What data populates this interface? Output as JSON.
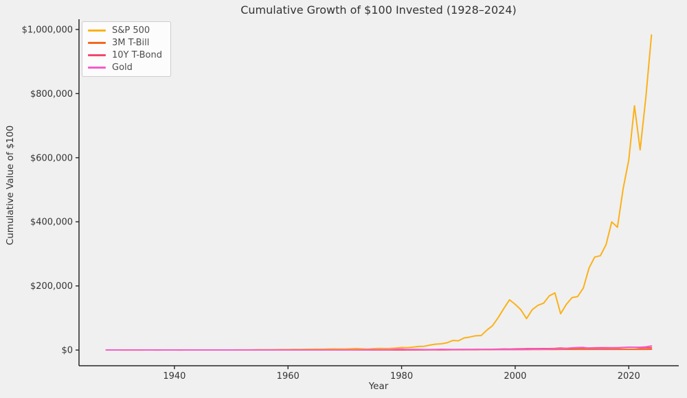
{
  "figure": {
    "background_color": "#f0f0f0",
    "spine_color": "#262626",
    "text_color": "#333333",
    "legend_text_color": "#4d4d4d"
  },
  "chart_data": {
    "type": "line",
    "title": "Cumulative Growth of $100 Invested (1928–2024)",
    "xlabel": "Year",
    "ylabel": "Cumulative Value of $100",
    "x_ticks": [
      1940,
      1960,
      1980,
      2000,
      2020
    ],
    "y_ticks": [
      {
        "value": 0,
        "label": "$0"
      },
      {
        "value": 200000,
        "label": "$200,000"
      },
      {
        "value": 400000,
        "label": "$400,000"
      },
      {
        "value": 600000,
        "label": "$600,000"
      },
      {
        "value": 800000,
        "label": "$800,000"
      },
      {
        "value": 1000000,
        "label": "$1,000,000"
      }
    ],
    "xlim": [
      1923.2,
      2028.8
    ],
    "ylim": [
      -49000,
      1032000
    ],
    "grid": false,
    "legend_position": "upper left",
    "years": [
      1928,
      1929,
      1930,
      1931,
      1932,
      1933,
      1934,
      1935,
      1936,
      1937,
      1938,
      1939,
      1940,
      1941,
      1942,
      1943,
      1944,
      1945,
      1946,
      1947,
      1948,
      1949,
      1950,
      1951,
      1952,
      1953,
      1954,
      1955,
      1956,
      1957,
      1958,
      1959,
      1960,
      1961,
      1962,
      1963,
      1964,
      1965,
      1966,
      1967,
      1968,
      1969,
      1970,
      1971,
      1972,
      1973,
      1974,
      1975,
      1976,
      1977,
      1978,
      1979,
      1980,
      1981,
      1982,
      1983,
      1984,
      1985,
      1986,
      1987,
      1988,
      1989,
      1990,
      1991,
      1992,
      1993,
      1994,
      1995,
      1996,
      1997,
      1998,
      1999,
      2000,
      2001,
      2002,
      2003,
      2004,
      2005,
      2006,
      2007,
      2008,
      2009,
      2010,
      2011,
      2012,
      2013,
      2014,
      2015,
      2016,
      2017,
      2018,
      2019,
      2020,
      2021,
      2022,
      2023,
      2024
    ],
    "series": [
      {
        "name": "S&P 500",
        "color": "#FBB117",
        "values": [
          144,
          132,
          99,
          55,
          51,
          76,
          75,
          110,
          145,
          94,
          122,
          120,
          107,
          94,
          112,
          140,
          166,
          226,
          207,
          217,
          230,
          272,
          356,
          440,
          520,
          513,
          783,
          1038,
          1116,
          999,
          1436,
          1609,
          1614,
          2044,
          1864,
          2286,
          2661,
          2991,
          2693,
          3334,
          3694,
          3390,
          3511,
          4010,
          4762,
          4080,
          3024,
          4142,
          5130,
          4771,
          5082,
          6023,
          7935,
          7562,
          9106,
          11141,
          11826,
          15520,
          18390,
          19459,
          22677,
          29816,
          28903,
          37641,
          40460,
          44494,
          45086,
          61858,
          75887,
          101006,
          129631,
          156710,
          142559,
          125666,
          98057,
          125866,
          139384,
          146118,
          168929,
          178186,
          113059,
          142386,
          163480,
          166913,
          193437,
          255638,
          290200,
          294205,
          328833,
          399893,
          382978,
          502505,
          593057,
          761900,
          624453,
          787185,
          983037
        ]
      },
      {
        "name": "3M T-Bill",
        "color": "#F4671F",
        "values": [
          103,
          106,
          111,
          113,
          115,
          116,
          116,
          116,
          116,
          117,
          117,
          117,
          117,
          117,
          117,
          118,
          118,
          118,
          119,
          120,
          121,
          122,
          123,
          125,
          127,
          130,
          131,
          133,
          137,
          141,
          144,
          148,
          153,
          156,
          161,
          166,
          172,
          179,
          187,
          195,
          206,
          219,
          234,
          244,
          254,
          271,
          293,
          310,
          326,
          342,
          367,
          404,
          450,
          513,
          568,
          617,
          676,
          726,
          770,
          815,
          869,
          940,
          1010,
          1065,
          1102,
          1135,
          1184,
          1249,
          1313,
          1379,
          1446,
          1514,
          1603,
          1659,
          1686,
          1702,
          1726,
          1781,
          1867,
          1955,
          1986,
          1988,
          1990,
          1991,
          1993,
          1994,
          1995,
          1996,
          2002,
          2020,
          2058,
          2102,
          2105,
          2107,
          2140,
          2200,
          2250
        ]
      },
      {
        "name": "10Y T-Bond",
        "color": "#F2486B",
        "values": [
          101,
          105,
          110,
          107,
          116,
          119,
          128,
          134,
          140,
          142,
          148,
          155,
          163,
          160,
          164,
          168,
          172,
          179,
          184,
          186,
          190,
          198,
          199,
          199,
          203,
          212,
          219,
          216,
          211,
          225,
          220,
          215,
          239,
          244,
          258,
          263,
          272,
          274,
          282,
          278,
          287,
          273,
          318,
          349,
          359,
          372,
          380,
          394,
          456,
          462,
          459,
          462,
          448,
          485,
          644,
          664,
          756,
          950,
          1180,
          1122,
          1214,
          1429,
          1518,
          1746,
          1909,
          2180,
          2005,
          2476,
          2511,
          2761,
          3173,
          2911,
          3396,
          3585,
          4127,
          4143,
          4329,
          4453,
          4540,
          5004,
          6010,
          5342,
          5793,
          6723,
          6922,
          6292,
          6969,
          7058,
          7107,
          7306,
          7304,
          8008,
          8916,
          8522,
          7002,
          7274,
          7278
        ]
      },
      {
        "name": "Gold",
        "color": "#F55CC8",
        "values": [
          100,
          100,
          100,
          100,
          100,
          126,
          170,
          170,
          170,
          170,
          170,
          170,
          170,
          170,
          170,
          170,
          170,
          170,
          170,
          170,
          170,
          170,
          170,
          170,
          170,
          170,
          170,
          170,
          170,
          170,
          170,
          170,
          170,
          170,
          170,
          170,
          170,
          170,
          170,
          170,
          204,
          170,
          179,
          208,
          315,
          543,
          906,
          679,
          654,
          800,
          1095,
          2482,
          2860,
          1939,
          2215,
          1852,
          1498,
          1585,
          1895,
          2361,
          1987,
          1944,
          1871,
          1711,
          1614,
          1891,
          1857,
          1876,
          1789,
          1406,
          1396,
          1406,
          1323,
          1352,
          1687,
          2017,
          2123,
          2506,
          3083,
          4043,
          4276,
          5313,
          6888,
          7591,
          8124,
          5827,
          5739,
          5143,
          5584,
          6316,
          6214,
          7354,
          9186,
          8866,
          8842,
          10000,
          12725
        ]
      }
    ]
  }
}
